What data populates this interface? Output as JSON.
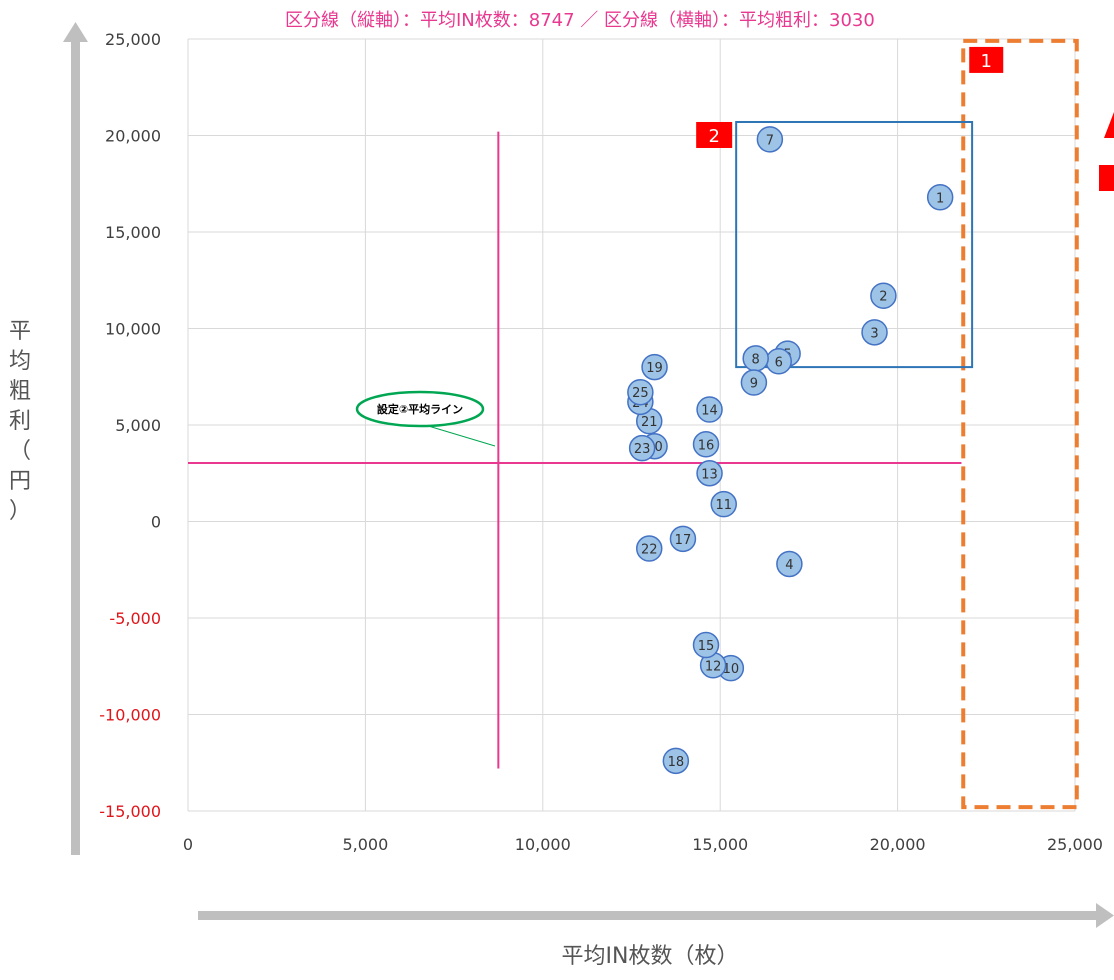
{
  "chart_data": {
    "type": "scatter",
    "title": "区分線（縦軸）：平均IN枚数：8747 ／ 区分線（横軸）：平均粗利：3030",
    "xlabel": "平均IN枚数（枚）",
    "ylabel": "平均粗利（円）",
    "xlim": [
      0,
      25000
    ],
    "ylim": [
      -15000,
      25000
    ],
    "x_ticks": [
      "0",
      "5,000",
      "10,000",
      "15,000",
      "20,000",
      "25,000"
    ],
    "y_ticks": [
      "25,000",
      "20,000",
      "15,000",
      "10,000",
      "5,000",
      "0",
      "-5,000",
      "-10,000",
      "-15,000"
    ],
    "grid": true,
    "points": [
      {
        "label": "1",
        "x": 21200,
        "y": 16800
      },
      {
        "label": "2",
        "x": 19600,
        "y": 11700
      },
      {
        "label": "3",
        "x": 19350,
        "y": 9800
      },
      {
        "label": "4",
        "x": 16950,
        "y": -2200
      },
      {
        "label": "5",
        "x": 16900,
        "y": 8700
      },
      {
        "label": "6",
        "x": 16650,
        "y": 8300
      },
      {
        "label": "7",
        "x": 16400,
        "y": 19800
      },
      {
        "label": "8",
        "x": 16000,
        "y": 8450
      },
      {
        "label": "9",
        "x": 15950,
        "y": 7200
      },
      {
        "label": "10",
        "x": 15300,
        "y": -7600
      },
      {
        "label": "11",
        "x": 15100,
        "y": 900
      },
      {
        "label": "12",
        "x": 14800,
        "y": -7450
      },
      {
        "label": "13",
        "x": 14700,
        "y": 2500
      },
      {
        "label": "14",
        "x": 14700,
        "y": 5800
      },
      {
        "label": "15",
        "x": 14600,
        "y": -6400
      },
      {
        "label": "16",
        "x": 14600,
        "y": 4000
      },
      {
        "label": "17",
        "x": 13950,
        "y": -900
      },
      {
        "label": "18",
        "x": 13750,
        "y": -12400
      },
      {
        "label": "19",
        "x": 13150,
        "y": 8000
      },
      {
        "label": "20",
        "x": 13150,
        "y": 3900
      },
      {
        "label": "21",
        "x": 13000,
        "y": 5200
      },
      {
        "label": "22",
        "x": 13000,
        "y": -1400
      },
      {
        "label": "23",
        "x": 12800,
        "y": 3800
      },
      {
        "label": "24",
        "x": 12750,
        "y": 6200
      },
      {
        "label": "25",
        "x": 12750,
        "y": 6700
      }
    ],
    "divider_vertical": {
      "x": 8747,
      "y_from": -12800,
      "y_to": 20200
    },
    "divider_horizontal": {
      "y": 3030,
      "x_from": 0,
      "x_to": 21800
    },
    "callout": {
      "text": "設定②平均ライン"
    },
    "region_1": {
      "label": "1",
      "x_from": 21850,
      "x_to": 25050,
      "y_from": -14800,
      "y_to": 24900
    },
    "region_2": {
      "label": "2",
      "x_from": 15450,
      "x_to": 22100,
      "y_from": 8000,
      "y_to": 20700
    },
    "colors": {
      "point_fill": "#9dc3e6",
      "point_stroke": "#4472c4",
      "divider": "#e8388f",
      "region_1": "#ed7d31",
      "region_2": "#2e75b6",
      "badge": "#ff0000",
      "callout_border": "#00a651",
      "grid": "#d9d9d9",
      "axis_arrow": "#bfbfbf"
    }
  }
}
